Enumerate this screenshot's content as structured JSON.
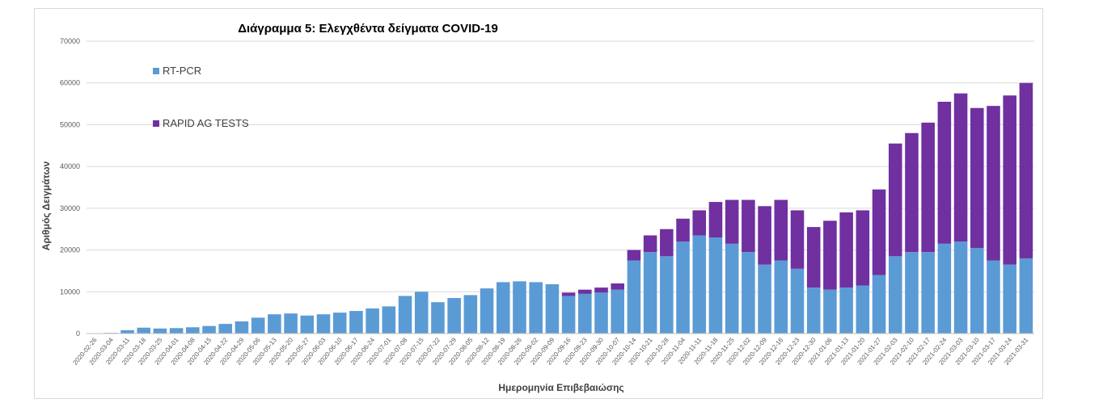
{
  "colors": {
    "rt_pcr": "#5B9BD5",
    "rapid": "#7030A0",
    "grid": "#d9d9d9",
    "axis_text": "#595959",
    "title": "#000000"
  },
  "chart_data": {
    "type": "bar",
    "stacked": true,
    "title": "Διάγραμμα 5: Ελεγχθέντα δείγματα COVID-19",
    "xlabel": "Ημερομηνία Επιβεβαιώσης",
    "ylabel": "Αριθμός Δειγμάτων",
    "ylim": [
      0,
      70000
    ],
    "yticks": [
      0,
      10000,
      20000,
      30000,
      40000,
      50000,
      60000,
      70000
    ],
    "grid": true,
    "legend_position": "top-left",
    "xtick_labels": [
      "2020-02-26",
      "2020-03-04",
      "2020-03-11",
      "2020-03-18",
      "2020-03-25",
      "2020-04-01",
      "2020-04-08",
      "2020-04-15",
      "2020-04-22",
      "2020-04-29",
      "2020-05-06",
      "2020-05-13",
      "2020-05-20",
      "2020-05-27",
      "2020-06-03",
      "2020-06-10",
      "2020-06-17",
      "2020-06-24",
      "2020-07-01",
      "2020-07-08",
      "2020-07-15",
      "2020-07-22",
      "2020-07-29",
      "2020-08-05",
      "2020-08-12",
      "2020-08-19",
      "2020-08-26",
      "2020-09-02",
      "2020-09-09",
      "2020-09-16",
      "2020-09-23",
      "2020-09-30",
      "2020-10-07",
      "2020-10-14",
      "2020-10-21",
      "2020-10-28",
      "2020-11-04",
      "2020-11-11",
      "2020-11-18",
      "2020-11-25",
      "2020-12-02",
      "2020-12-09",
      "2020-12-16",
      "2020-12-23",
      "2020-12-30",
      "2021-01-06",
      "2021-01-13",
      "2021-01-20",
      "2021-01-27",
      "2021-02-03",
      "2021-02-10",
      "2021-02-17",
      "2021-02-24",
      "2021-03-03",
      "2021-03-10",
      "2021-03-17",
      "2021-03-24",
      "2021-03-31"
    ],
    "series": [
      {
        "name": "RT-PCR",
        "weekly_values": [
          0,
          150,
          800,
          1400,
          1200,
          1300,
          1500,
          1800,
          2300,
          2900,
          3800,
          4600,
          4800,
          4300,
          4600,
          5000,
          5400,
          6000,
          6500,
          9000,
          10000,
          7500,
          8500,
          9200,
          10800,
          12300,
          12500,
          12300,
          11800,
          9000,
          9500,
          9800,
          10500,
          17500,
          19500,
          18500,
          22000,
          23500,
          23000,
          21500,
          19500,
          16500,
          17500,
          15500,
          11000,
          10500,
          11000,
          11500,
          14000,
          18500,
          19500,
          19500,
          21500,
          22000,
          20500,
          17500,
          16500,
          18000
        ]
      },
      {
        "name": "RAPID AG TESTS",
        "weekly_values": [
          0,
          0,
          0,
          0,
          0,
          0,
          0,
          0,
          0,
          0,
          0,
          0,
          0,
          0,
          0,
          0,
          0,
          0,
          0,
          0,
          0,
          0,
          0,
          0,
          0,
          0,
          0,
          0,
          0,
          800,
          1000,
          1200,
          1500,
          2500,
          4000,
          6500,
          5500,
          6000,
          8500,
          10500,
          12500,
          14000,
          14500,
          14000,
          14500,
          16500,
          18000,
          18000,
          20500,
          27000,
          28500,
          31000,
          34000,
          35500,
          33500,
          37000,
          40500,
          42000
        ]
      }
    ]
  }
}
